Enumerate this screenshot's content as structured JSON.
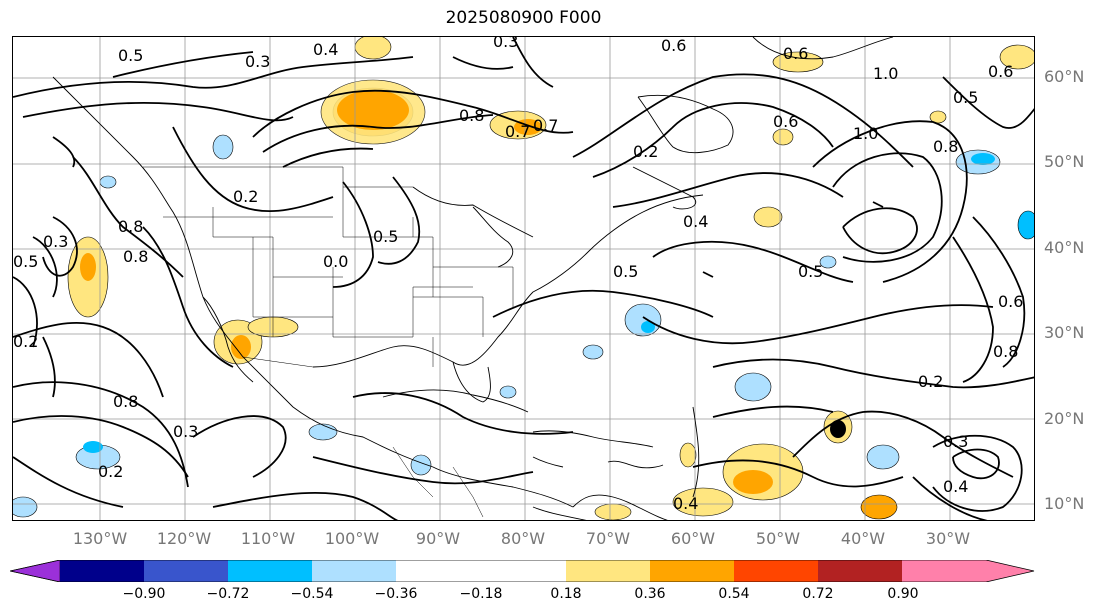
{
  "title": "2025080900 F000",
  "lat_labels": [
    "60°N",
    "50°N",
    "40°N",
    "30°N",
    "20°N",
    "10°N"
  ],
  "lon_labels": [
    "130°W",
    "120°W",
    "110°W",
    "100°W",
    "90°W",
    "80°W",
    "70°W",
    "60°W",
    "50°W",
    "40°W",
    "30°W"
  ],
  "colorbar": {
    "ticks": [
      "−0.90",
      "−0.72",
      "−0.54",
      "−0.36",
      "−0.18",
      "0.18",
      "0.36",
      "0.54",
      "0.72",
      "0.90"
    ],
    "colors": [
      "#9b30d9",
      "#00008b",
      "#3955cc",
      "#00bfff",
      "#aee0ff",
      "#ffffff",
      "#ffe680",
      "#ffa500",
      "#ff4500",
      "#b22222",
      "#ff80aa"
    ]
  },
  "contour_labels": [
    "0.5",
    "0.3",
    "0.4",
    "0.8",
    "0.7",
    "0.6",
    "1.0",
    "0.6",
    "0.5",
    "0.2",
    "0.8",
    "0.3",
    "0.5",
    "0.2",
    "0.5",
    "0.8",
    "0.4",
    "0.5",
    "0.6",
    "0.8",
    "0.2",
    "0.8",
    "0.6",
    "0.4",
    "0.3",
    "0.2",
    "0.3",
    "0.5",
    "0.2",
    "0.4",
    "0.3",
    "0.7",
    "0.0",
    "0.6",
    "0.8",
    "1.0"
  ]
}
